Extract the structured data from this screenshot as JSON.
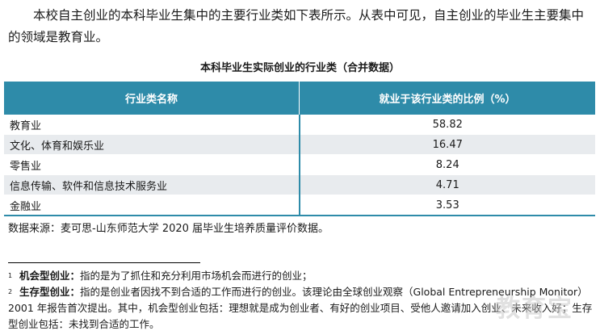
{
  "intro_text": "本校自主创业的本科毕业生集中的主要行业类如下表所示。从表中可见，自主创业的毕业生主要集中的领域是教育业。",
  "table": {
    "title": "本科毕业生实际创业的行业类（合并数据）",
    "headers": [
      "行业类名称",
      "就业于该行业类的比例（%）"
    ],
    "rows": [
      {
        "name": "教育业",
        "pct": "58.82"
      },
      {
        "name": "文化、体育和娱乐业",
        "pct": "16.47"
      },
      {
        "name": "零售业",
        "pct": "8.24"
      },
      {
        "name": "信息传输、软件和信息技术服务业",
        "pct": "4.71"
      },
      {
        "name": "金融业",
        "pct": "3.53"
      }
    ]
  },
  "source_text": "数据来源：麦可思-山东师范大学 2020 届毕业生培养质量评价数据。",
  "footnotes": [
    {
      "num": "1",
      "term": "机会型创业：",
      "text": "指的是为了抓住和充分利用市场机会而进行的创业；"
    },
    {
      "num": "2",
      "term": "生存型创业：",
      "text": "指的是创业者因找不到合适的工作而进行的创业。该理论由全球创业观察（Global Entrepreneurship Monitor）2001 年报告首次提出。其中，机会型创业包括：理想就是成为创业者、有好的创业项目、受他人邀请加入创业、未来收入好；生存型创业包括：未找到合适的工作。"
    }
  ],
  "watermark": "教育宝"
}
